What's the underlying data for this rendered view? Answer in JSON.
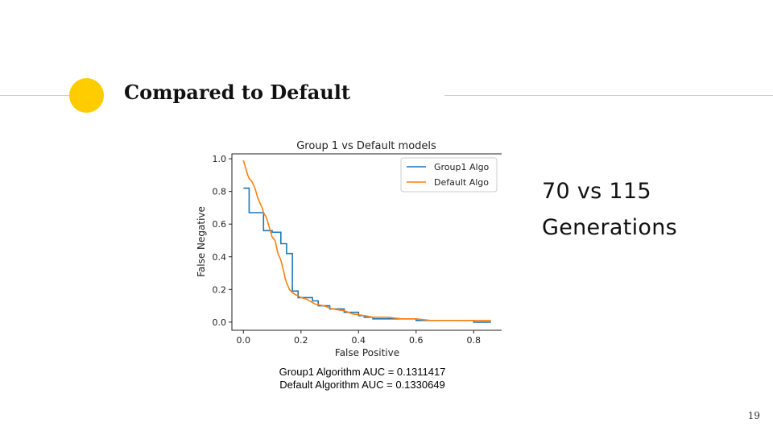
{
  "slide": {
    "title": "Compared to Default",
    "side_text": [
      "70 vs 115",
      "Generations"
    ],
    "auc_lines": [
      "Group1 Algorithm AUC = 0.1311417",
      "Default Algorithm AUC = 0.1330649"
    ],
    "page_number": "19",
    "accent_color": "#ffcc00"
  },
  "chart_data": {
    "type": "line",
    "title": "Group 1 vs Default models",
    "xlabel": "False Positive",
    "ylabel": "False Negative",
    "xlim": [
      -0.04,
      0.9
    ],
    "ylim": [
      -0.05,
      1.03
    ],
    "xticks": [
      0.0,
      0.2,
      0.4,
      0.6,
      0.8
    ],
    "xtick_labels": [
      "0.0",
      "0.2",
      "0.4",
      "0.6",
      "0.8"
    ],
    "yticks": [
      0.0,
      0.2,
      0.4,
      0.6,
      0.8,
      1.0
    ],
    "ytick_labels": [
      "0.0",
      "0.2",
      "0.4",
      "0.6",
      "0.8",
      "1.0"
    ],
    "grid": false,
    "legend_position": "top-right",
    "series": [
      {
        "name": "Group1 Algo",
        "color": "#1f77b4",
        "x": [
          0.0,
          0.02,
          0.02,
          0.07,
          0.07,
          0.1,
          0.1,
          0.13,
          0.13,
          0.15,
          0.15,
          0.17,
          0.17,
          0.19,
          0.19,
          0.24,
          0.24,
          0.26,
          0.26,
          0.3,
          0.3,
          0.35,
          0.35,
          0.4,
          0.4,
          0.42,
          0.42,
          0.45,
          0.45,
          0.6,
          0.6,
          0.65,
          0.65,
          0.8,
          0.8,
          0.86
        ],
        "y": [
          0.82,
          0.82,
          0.67,
          0.67,
          0.56,
          0.56,
          0.55,
          0.55,
          0.48,
          0.48,
          0.42,
          0.42,
          0.19,
          0.19,
          0.15,
          0.15,
          0.13,
          0.13,
          0.1,
          0.1,
          0.08,
          0.08,
          0.06,
          0.06,
          0.04,
          0.04,
          0.03,
          0.03,
          0.02,
          0.02,
          0.01,
          0.01,
          0.01,
          0.01,
          0.0,
          0.0
        ]
      },
      {
        "name": "Default Algo",
        "color": "#ff7f0e",
        "x": [
          0.0,
          0.005,
          0.01,
          0.015,
          0.02,
          0.03,
          0.04,
          0.045,
          0.05,
          0.06,
          0.065,
          0.07,
          0.08,
          0.09,
          0.1,
          0.11,
          0.115,
          0.12,
          0.13,
          0.14,
          0.145,
          0.15,
          0.16,
          0.17,
          0.18,
          0.19,
          0.2,
          0.22,
          0.25,
          0.28,
          0.31,
          0.35,
          0.38,
          0.42,
          0.45,
          0.5,
          0.55,
          0.6,
          0.65,
          0.7,
          0.8,
          0.86
        ],
        "y": [
          0.99,
          0.96,
          0.93,
          0.9,
          0.88,
          0.86,
          0.82,
          0.79,
          0.76,
          0.72,
          0.7,
          0.67,
          0.64,
          0.58,
          0.52,
          0.5,
          0.46,
          0.42,
          0.38,
          0.31,
          0.27,
          0.24,
          0.2,
          0.18,
          0.17,
          0.16,
          0.15,
          0.14,
          0.11,
          0.1,
          0.08,
          0.07,
          0.05,
          0.04,
          0.03,
          0.03,
          0.02,
          0.02,
          0.01,
          0.01,
          0.01,
          0.01
        ]
      }
    ]
  }
}
